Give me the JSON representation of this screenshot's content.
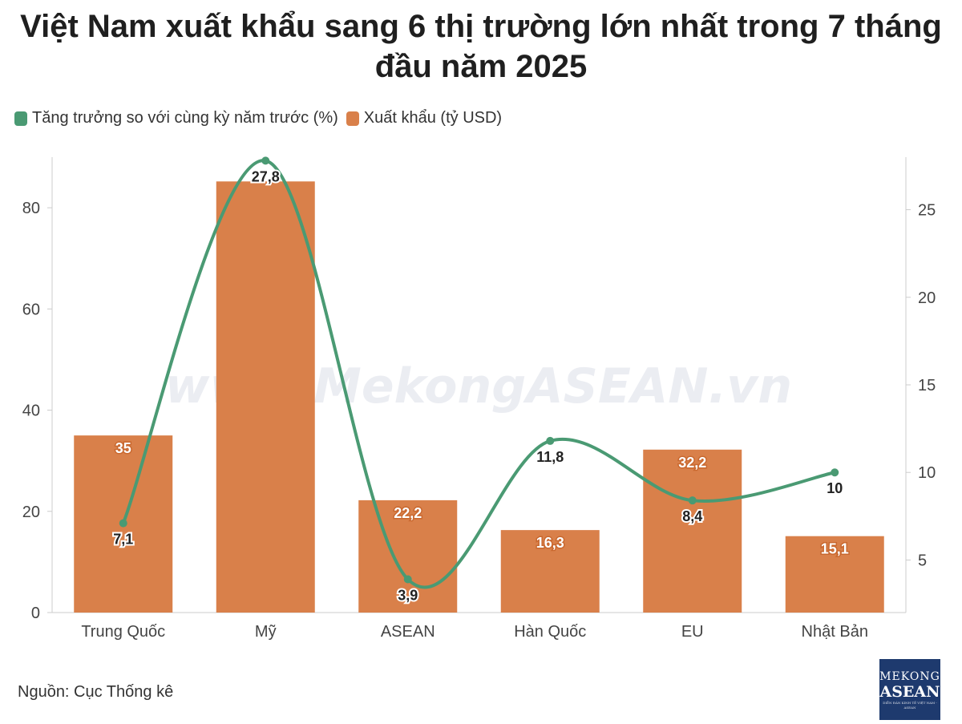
{
  "chart_data": {
    "type": "bar",
    "title": "Việt Nam xuất khẩu sang 6 thị trường lớn nhất trong 7 tháng đầu năm 2025",
    "categories": [
      "Trung Quốc",
      "Mỹ",
      "ASEAN",
      "Hàn Quốc",
      "EU",
      "Nhật Bản"
    ],
    "series": [
      {
        "name": "Xuất khẩu (tỷ USD)",
        "type": "bar",
        "axis": "left",
        "color": "#d9804a",
        "values": [
          35,
          85.2,
          22.2,
          16.3,
          32.2,
          15.1
        ],
        "labels": [
          "35",
          "",
          "22,2",
          "16,3",
          "32,2",
          "15,1"
        ]
      },
      {
        "name": "Tăng trưởng so với cùng kỳ năm trước (%)",
        "type": "line",
        "axis": "right",
        "color": "#4a9a73",
        "values": [
          7.1,
          27.8,
          3.9,
          11.8,
          8.4,
          10
        ],
        "labels": [
          "7,1",
          "27,8",
          "3,9",
          "11,8",
          "8,4",
          "10"
        ]
      }
    ],
    "y_left": {
      "ticks": [
        "0",
        "20",
        "40",
        "60",
        "80"
      ],
      "ylim": [
        0,
        90
      ]
    },
    "y_right": {
      "ticks": [
        "5",
        "10",
        "15",
        "20",
        "25"
      ],
      "ylim": [
        2.0,
        28.0
      ]
    },
    "legend_position": "top-left",
    "grid": false
  },
  "source": "Nguồn: Cục Thống kê",
  "watermark": "www.MekongASEAN.vn",
  "logo": {
    "line1": "MEKONG",
    "line2": "ASEAN",
    "line3": "DIỄN ĐÀN KINH TẾ VIỆT NAM - ASEAN"
  }
}
